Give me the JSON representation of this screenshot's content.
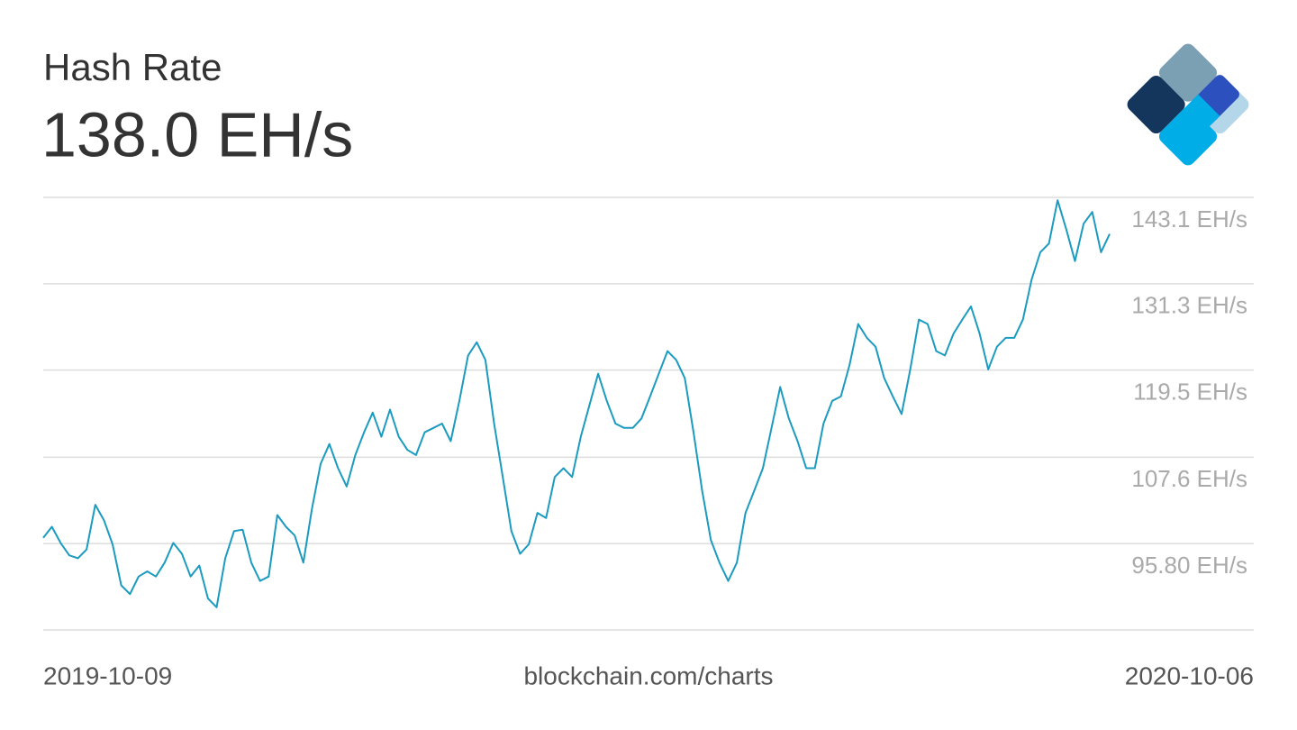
{
  "chart_data": {
    "type": "line",
    "title": "Hash Rate",
    "current_value": "138.0 EH/s",
    "source": "blockchain.com/charts",
    "xlim": [
      "2019-10-09",
      "2020-10-06"
    ],
    "ylim": [
      84.0,
      143.1
    ],
    "yticks": [
      {
        "value": 143.1,
        "label": "143.1 EH/s"
      },
      {
        "value": 131.3,
        "label": "131.3 EH/s"
      },
      {
        "value": 119.5,
        "label": "119.5 EH/s"
      },
      {
        "value": 107.6,
        "label": "107.6 EH/s"
      },
      {
        "value": 95.8,
        "label": "95.80 EH/s"
      }
    ],
    "grid": true,
    "color": "#1b9bc0",
    "values": [
      96.6,
      98.1,
      95.9,
      94.2,
      93.8,
      95.0,
      101.1,
      99.0,
      95.7,
      90.1,
      88.9,
      91.3,
      92.0,
      91.3,
      93.2,
      95.9,
      94.4,
      91.3,
      92.8,
      88.3,
      87.1,
      93.8,
      97.5,
      97.7,
      93.2,
      90.7,
      91.3,
      99.7,
      98.1,
      96.9,
      93.2,
      100.6,
      106.7,
      109.4,
      106.1,
      103.6,
      107.9,
      111.0,
      113.7,
      110.4,
      114.1,
      110.4,
      108.6,
      107.9,
      111.0,
      111.6,
      112.2,
      109.8,
      115.3,
      121.5,
      123.3,
      120.9,
      112.2,
      104.9,
      97.5,
      94.4,
      95.7,
      100.0,
      99.3,
      104.9,
      106.1,
      104.9,
      110.4,
      114.7,
      119.0,
      115.3,
      112.2,
      111.6,
      111.6,
      112.9,
      115.9,
      119.0,
      122.1,
      120.9,
      118.4,
      111.0,
      103.0,
      96.3,
      93.2,
      90.7,
      93.2,
      100.0,
      103.0,
      106.1,
      111.6,
      117.2,
      112.9,
      109.8,
      106.1,
      106.1,
      112.2,
      115.3,
      115.9,
      120.2,
      125.8,
      123.9,
      122.7,
      118.4,
      115.9,
      113.5,
      119.6,
      126.4,
      125.8,
      122.1,
      121.5,
      124.5,
      126.4,
      128.2,
      124.5,
      119.6,
      122.7,
      123.9,
      123.9,
      126.4,
      131.9,
      135.6,
      136.8,
      142.7,
      138.7,
      134.4,
      139.5,
      141.1,
      135.6,
      138.1
    ]
  }
}
